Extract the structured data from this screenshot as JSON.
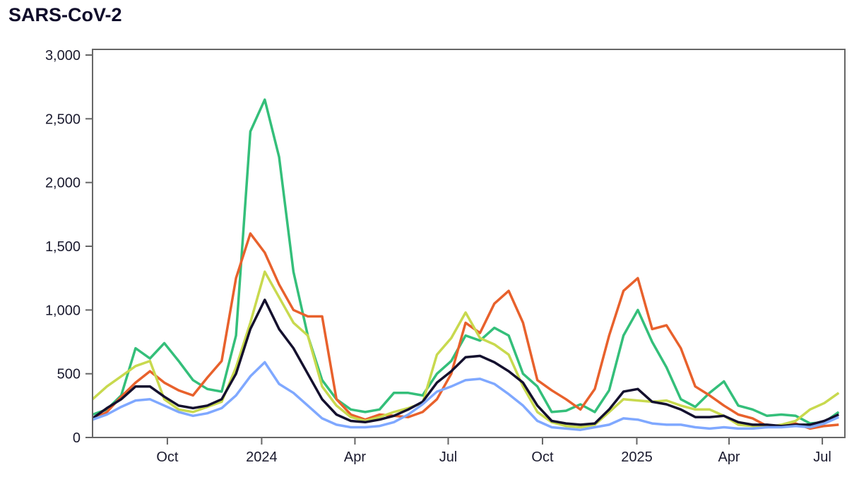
{
  "chart_data": {
    "type": "line",
    "title": "SARS-CoV-2",
    "xlabel": "",
    "ylabel": "",
    "ylim": [
      0,
      3000
    ],
    "xlim": [
      "2023-07-20",
      "2025-07-23"
    ],
    "grid": false,
    "legend": "none",
    "x_start": "2023-07-20",
    "step_days": 14,
    "y_ticks": [
      {
        "value": 0,
        "label": "0"
      },
      {
        "value": 500,
        "label": "500"
      },
      {
        "value": 1000,
        "label": "1,000"
      },
      {
        "value": 1500,
        "label": "1,500"
      },
      {
        "value": 2000,
        "label": "2,000"
      },
      {
        "value": 2500,
        "label": "2,500"
      },
      {
        "value": 3000,
        "label": "3,000"
      }
    ],
    "x_ticks": [
      {
        "date": "2023-10-01",
        "label": "Oct"
      },
      {
        "date": "2024-01-01",
        "label": "2024"
      },
      {
        "date": "2024-04-01",
        "label": "Apr"
      },
      {
        "date": "2024-07-01",
        "label": "Jul"
      },
      {
        "date": "2024-10-01",
        "label": "Oct"
      },
      {
        "date": "2025-01-01",
        "label": "2025"
      },
      {
        "date": "2025-04-01",
        "label": "Apr"
      },
      {
        "date": "2025-07-01",
        "label": "Jul"
      }
    ],
    "series": [
      {
        "name": "green",
        "color": "#34bf7a",
        "values": [
          180,
          220,
          330,
          700,
          620,
          740,
          600,
          450,
          380,
          360,
          800,
          2400,
          2650,
          2200,
          1300,
          800,
          450,
          300,
          220,
          200,
          220,
          350,
          350,
          330,
          500,
          600,
          800,
          760,
          860,
          800,
          500,
          400,
          200,
          210,
          260,
          200,
          370,
          800,
          1000,
          750,
          550,
          300,
          240,
          350,
          440,
          250,
          220,
          170,
          180,
          170,
          110,
          120,
          200
        ]
      },
      {
        "name": "orange",
        "color": "#e8612c",
        "values": [
          140,
          200,
          320,
          430,
          520,
          430,
          370,
          330,
          470,
          600,
          1250,
          1600,
          1450,
          1200,
          1000,
          950,
          950,
          300,
          180,
          140,
          180,
          170,
          160,
          200,
          300,
          500,
          900,
          820,
          1050,
          1150,
          900,
          450,
          370,
          300,
          220,
          380,
          800,
          1150,
          1250,
          850,
          880,
          700,
          400,
          330,
          250,
          180,
          150,
          90,
          90,
          110,
          70,
          90,
          100
        ]
      },
      {
        "name": "yellow",
        "color": "#c8d94e",
        "values": [
          300,
          400,
          480,
          560,
          600,
          300,
          220,
          200,
          240,
          280,
          550,
          900,
          1300,
          1100,
          900,
          800,
          400,
          250,
          160,
          130,
          160,
          200,
          230,
          270,
          650,
          780,
          980,
          780,
          730,
          650,
          400,
          200,
          120,
          90,
          80,
          100,
          200,
          300,
          290,
          280,
          290,
          250,
          220,
          220,
          170,
          100,
          90,
          80,
          100,
          130,
          220,
          270,
          350
        ]
      },
      {
        "name": "black",
        "color": "#14102e",
        "values": [
          150,
          230,
          300,
          400,
          400,
          320,
          250,
          230,
          250,
          300,
          500,
          850,
          1080,
          850,
          700,
          500,
          300,
          180,
          130,
          120,
          140,
          170,
          220,
          280,
          430,
          520,
          630,
          640,
          590,
          520,
          430,
          250,
          130,
          110,
          100,
          110,
          220,
          360,
          380,
          280,
          260,
          220,
          160,
          160,
          170,
          120,
          100,
          100,
          90,
          100,
          100,
          130,
          180
        ]
      },
      {
        "name": "blue",
        "color": "#7fa8ff",
        "values": [
          140,
          180,
          240,
          290,
          300,
          250,
          200,
          170,
          190,
          230,
          330,
          480,
          590,
          420,
          350,
          250,
          150,
          100,
          80,
          80,
          90,
          120,
          180,
          260,
          360,
          400,
          450,
          460,
          420,
          340,
          250,
          130,
          80,
          70,
          60,
          80,
          100,
          150,
          140,
          110,
          100,
          100,
          80,
          70,
          80,
          70,
          70,
          80,
          80,
          90,
          80,
          110,
          160
        ]
      }
    ]
  }
}
